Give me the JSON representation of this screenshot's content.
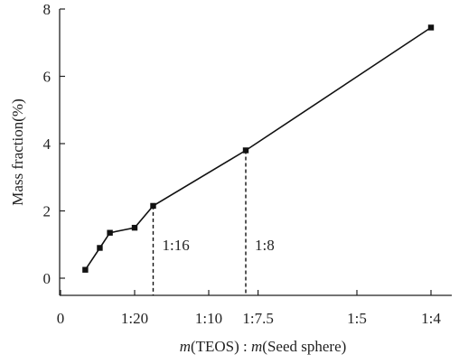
{
  "chart_data": {
    "type": "line",
    "ylabel": "Mass fraction(%)",
    "xlabel_italic": "m",
    "xlabel_part1": "(TEOS) : ",
    "xlabel_part2": "(Seed sphere)",
    "ylim": [
      0,
      8
    ],
    "yticks": [
      0,
      2,
      4,
      6,
      8
    ],
    "xlim": [
      0,
      0.25
    ],
    "x_axis_scale": "reciprocal ratio, axis spans 0 to 1:4",
    "x_ticks": [
      {
        "value": 0,
        "label": "0"
      },
      {
        "value": 0.05,
        "label": "1:20"
      },
      {
        "value": 0.1,
        "label": "1:10"
      },
      {
        "value": 0.1333,
        "label": "1:7.5"
      },
      {
        "value": 0.2,
        "label": "1:5"
      },
      {
        "value": 0.25,
        "label": "1:4"
      }
    ],
    "series": [
      {
        "points": [
          {
            "x": 0.0167,
            "y": 0.25
          },
          {
            "x": 0.0265,
            "y": 0.9
          },
          {
            "x": 0.0333,
            "y": 1.35
          },
          {
            "x": 0.05,
            "y": 1.5
          },
          {
            "x": 0.0625,
            "y": 2.15
          },
          {
            "x": 0.125,
            "y": 3.8
          },
          {
            "x": 0.25,
            "y": 7.45
          }
        ]
      }
    ],
    "annotations": [
      {
        "text": "1:16",
        "x": 0.0625,
        "y": 2.15
      },
      {
        "text": "1:8",
        "x": 0.125,
        "y": 3.8
      }
    ],
    "grid": false
  }
}
